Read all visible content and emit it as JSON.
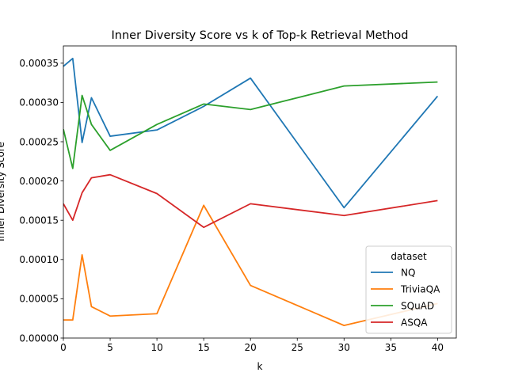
{
  "chart_data": {
    "type": "line",
    "title": "Inner Diversity Score vs k of Top-k Retrieval Method",
    "xlabel": "k",
    "ylabel": "Inner Diversity Score",
    "xlim": [
      0,
      42
    ],
    "ylim": [
      0,
      0.000372
    ],
    "xticks": [
      0,
      5,
      10,
      15,
      20,
      25,
      30,
      35,
      40
    ],
    "xtick_labels": [
      "0",
      "5",
      "10",
      "15",
      "20",
      "25",
      "30",
      "35",
      "40"
    ],
    "yticks": [
      0,
      5e-05,
      0.0001,
      0.00015,
      0.0002,
      0.00025,
      0.0003,
      0.00035
    ],
    "ytick_labels": [
      "0.00000",
      "0.00005",
      "0.00010",
      "0.00015",
      "0.00020",
      "0.00025",
      "0.00030",
      "0.00035"
    ],
    "grid": false,
    "legend": {
      "title": "dataset",
      "position": "lower-right"
    },
    "x": [
      0,
      1,
      2,
      3,
      5,
      10,
      15,
      20,
      30,
      40
    ],
    "series": [
      {
        "name": "NQ",
        "color": "#1f77b4",
        "values": [
          0.000346,
          0.000356,
          0.000249,
          0.000306,
          0.000257,
          0.000265,
          0.000295,
          0.000331,
          0.000166,
          0.000308
        ]
      },
      {
        "name": "TriviaQA",
        "color": "#ff7f0e",
        "values": [
          2.3e-05,
          2.3e-05,
          0.000106,
          4e-05,
          2.8e-05,
          3.1e-05,
          0.000169,
          6.7e-05,
          1.6e-05,
          4.4e-05
        ]
      },
      {
        "name": "SQuAD",
        "color": "#2ca02c",
        "values": [
          0.000266,
          0.000216,
          0.000309,
          0.000272,
          0.000239,
          0.000272,
          0.000298,
          0.000291,
          0.000321,
          0.000326
        ]
      },
      {
        "name": "ASQA",
        "color": "#d62728",
        "values": [
          0.000171,
          0.00015,
          0.000185,
          0.000204,
          0.000208,
          0.000184,
          0.000141,
          0.000171,
          0.000156,
          0.000175
        ]
      }
    ]
  }
}
